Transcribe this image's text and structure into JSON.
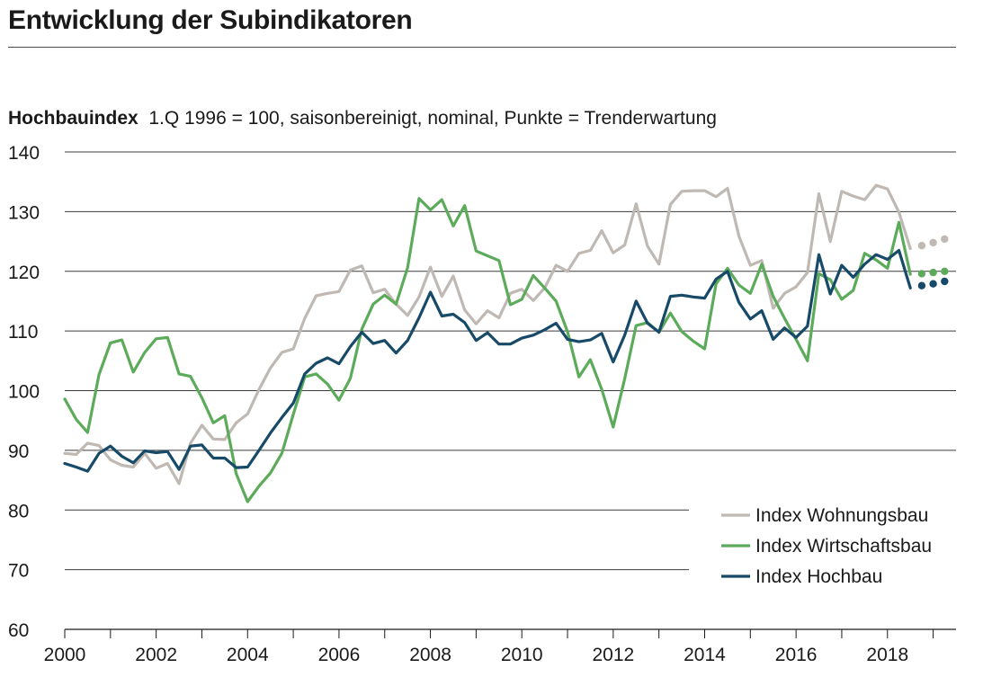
{
  "title": "Entwicklung der Subindikatoren",
  "chart_heading": {
    "bold": "Hochbauindex",
    "rest": "1.Q 1996 = 100, saisonbereinigt, nominal, Punkte = Trenderwartung"
  },
  "chart_data": {
    "type": "line",
    "ylim": [
      60,
      140
    ],
    "yticks": [
      60,
      70,
      80,
      90,
      100,
      110,
      120,
      130,
      140
    ],
    "xlim": [
      2000,
      2019.5
    ],
    "xticks": [
      2000,
      2002,
      2004,
      2006,
      2008,
      2010,
      2012,
      2014,
      2016,
      2018
    ],
    "grid": true,
    "legend_position": "bottom-right",
    "x_start": 2000,
    "x_step": 0.25,
    "series": [
      {
        "name": "Index Wohnungsbau",
        "color": "#bfb8b3",
        "values": [
          89.5,
          89.3,
          91.2,
          90.8,
          88.4,
          87.5,
          87.2,
          89.5,
          87.0,
          87.8,
          84.4,
          91.2,
          94.2,
          91.9,
          91.8,
          94.6,
          96.1,
          100.2,
          103.8,
          106.4,
          107.0,
          112.1,
          115.9,
          116.3,
          116.6,
          120.2,
          120.9,
          116.4,
          117.0,
          114.5,
          112.6,
          115.7,
          120.7,
          115.8,
          119.2,
          113.5,
          111.2,
          113.4,
          112.2,
          116.3,
          117.0,
          115.1,
          117.2,
          121.0,
          120.0,
          123.0,
          123.5,
          126.8,
          123.1,
          124.4,
          131.3,
          124.2,
          121.2,
          131.2,
          133.4,
          133.5,
          133.5,
          132.5,
          133.9,
          125.9,
          121.0,
          121.8,
          113.8,
          116.3,
          117.4,
          119.8,
          133.0,
          125.0,
          133.4,
          132.6,
          132.0,
          134.4,
          133.8,
          129.9,
          123.8
        ],
        "forecast": [
          124.3,
          124.8,
          125.4
        ]
      },
      {
        "name": "Index Wirtschaftsbau",
        "color": "#5cab5b",
        "values": [
          98.6,
          95.2,
          93.0,
          102.7,
          108.0,
          108.5,
          103.1,
          106.4,
          108.7,
          108.9,
          102.8,
          102.4,
          98.8,
          94.6,
          95.8,
          86.1,
          81.4,
          84.0,
          86.2,
          89.5,
          96.0,
          102.3,
          102.8,
          101.1,
          98.4,
          102.1,
          110.3,
          114.5,
          116.0,
          114.5,
          120.6,
          132.2,
          130.3,
          132.0,
          127.6,
          131.0,
          123.4,
          122.6,
          121.8,
          114.4,
          115.3,
          119.3,
          117.2,
          115.0,
          109.9,
          102.3,
          105.2,
          100.2,
          93.9,
          102.0,
          110.9,
          111.4,
          109.8,
          113.0,
          109.9,
          108.3,
          107.0,
          117.9,
          120.5,
          117.7,
          116.3,
          121.2,
          115.8,
          112.1,
          108.6,
          105.0,
          119.6,
          118.6,
          115.3,
          116.8,
          123.0,
          121.9,
          120.5,
          128.2,
          119.5
        ],
        "forecast": [
          119.6,
          119.8,
          120.0
        ]
      },
      {
        "name": "Index Hochbau",
        "color": "#174a68",
        "values": [
          87.8,
          87.2,
          86.5,
          89.5,
          90.7,
          89.0,
          87.9,
          89.9,
          89.6,
          89.8,
          86.8,
          90.7,
          90.9,
          88.7,
          88.7,
          87.1,
          87.2,
          90.0,
          92.9,
          95.5,
          97.9,
          102.8,
          104.6,
          105.5,
          104.5,
          107.4,
          109.8,
          107.9,
          108.4,
          106.3,
          108.4,
          112.2,
          116.5,
          112.5,
          112.8,
          111.4,
          108.4,
          109.7,
          107.8,
          107.8,
          108.8,
          109.3,
          110.2,
          111.3,
          108.6,
          108.2,
          108.5,
          109.6,
          104.8,
          109.3,
          115.0,
          111.3,
          109.8,
          115.8,
          116.0,
          115.7,
          115.5,
          118.7,
          120.0,
          114.8,
          112.0,
          113.4,
          108.6,
          110.5,
          108.9,
          110.8,
          122.8,
          116.2,
          121.0,
          119.0,
          121.2,
          122.8,
          122.0,
          123.5,
          117.2
        ],
        "forecast": [
          117.6,
          117.9,
          118.3
        ]
      }
    ]
  }
}
